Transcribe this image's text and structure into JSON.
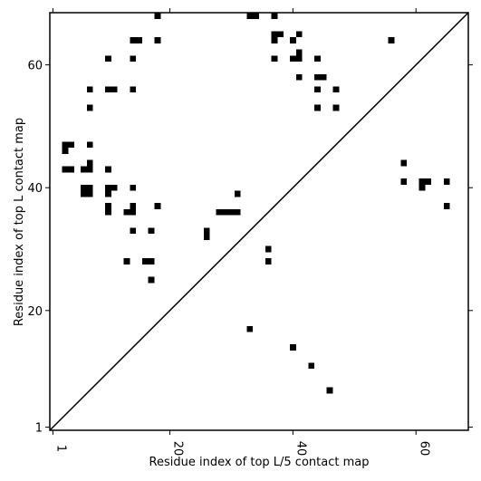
{
  "chart_data": {
    "type": "heatmap",
    "title": "",
    "xlabel": "Residue index of top L/5 contact map",
    "ylabel": "Residue index of top L contact map",
    "xlim": [
      0.5,
      68.5
    ],
    "ylim": [
      0.5,
      68.5
    ],
    "x_ticks": [
      1,
      20,
      40,
      60
    ],
    "y_ticks": [
      1,
      20,
      40,
      60
    ],
    "x_tick_labels": [
      "1",
      "20",
      "40",
      "60"
    ],
    "y_tick_labels": [
      "1",
      "20",
      "40",
      "60"
    ],
    "x_tick_rotation": "vertical",
    "grid": false,
    "diagonal_line": true,
    "cell_color": "#000000",
    "background_color": "#ffffff",
    "upper_contacts": [
      [
        18,
        68
      ],
      [
        33,
        68
      ],
      [
        34,
        68
      ],
      [
        37,
        68
      ],
      [
        14,
        64
      ],
      [
        15,
        64
      ],
      [
        18,
        64
      ],
      [
        37,
        64
      ],
      [
        37,
        65
      ],
      [
        38,
        65
      ],
      [
        40,
        64
      ],
      [
        41,
        65
      ],
      [
        56,
        64
      ],
      [
        10,
        61
      ],
      [
        14,
        61
      ],
      [
        37,
        61
      ],
      [
        40,
        61
      ],
      [
        41,
        61
      ],
      [
        41,
        62
      ],
      [
        44,
        61
      ],
      [
        41,
        58
      ],
      [
        44,
        58
      ],
      [
        45,
        58
      ],
      [
        7,
        56
      ],
      [
        10,
        56
      ],
      [
        11,
        56
      ],
      [
        14,
        56
      ],
      [
        44,
        56
      ],
      [
        47,
        56
      ],
      [
        7,
        53
      ],
      [
        44,
        53
      ],
      [
        47,
        53
      ],
      [
        3,
        47
      ],
      [
        4,
        47
      ],
      [
        3,
        46
      ],
      [
        7,
        47
      ],
      [
        7,
        44
      ],
      [
        3,
        43
      ],
      [
        4,
        43
      ],
      [
        6,
        43
      ],
      [
        7,
        43
      ],
      [
        10,
        43
      ],
      [
        6,
        40
      ],
      [
        7,
        40
      ],
      [
        6,
        39
      ],
      [
        7,
        39
      ],
      [
        10,
        40
      ],
      [
        11,
        40
      ],
      [
        10,
        39
      ],
      [
        14,
        40
      ],
      [
        31,
        39
      ],
      [
        10,
        37
      ],
      [
        10,
        36
      ],
      [
        13,
        36
      ],
      [
        14,
        36
      ],
      [
        14,
        37
      ],
      [
        18,
        37
      ],
      [
        14,
        33
      ],
      [
        17,
        33
      ],
      [
        26,
        33
      ],
      [
        26,
        32
      ],
      [
        28,
        36
      ],
      [
        29,
        36
      ],
      [
        30,
        36
      ],
      [
        31,
        36
      ],
      [
        36,
        30
      ],
      [
        13,
        28
      ],
      [
        16,
        28
      ],
      [
        17,
        28
      ],
      [
        36,
        28
      ],
      [
        17,
        25
      ]
    ],
    "lower_contacts": [
      [
        58,
        44
      ],
      [
        58,
        41
      ],
      [
        61,
        41
      ],
      [
        62,
        41
      ],
      [
        61,
        40
      ],
      [
        65,
        41
      ],
      [
        65,
        37
      ],
      [
        33,
        17
      ],
      [
        40,
        14
      ],
      [
        43,
        11
      ],
      [
        46,
        7
      ]
    ]
  }
}
